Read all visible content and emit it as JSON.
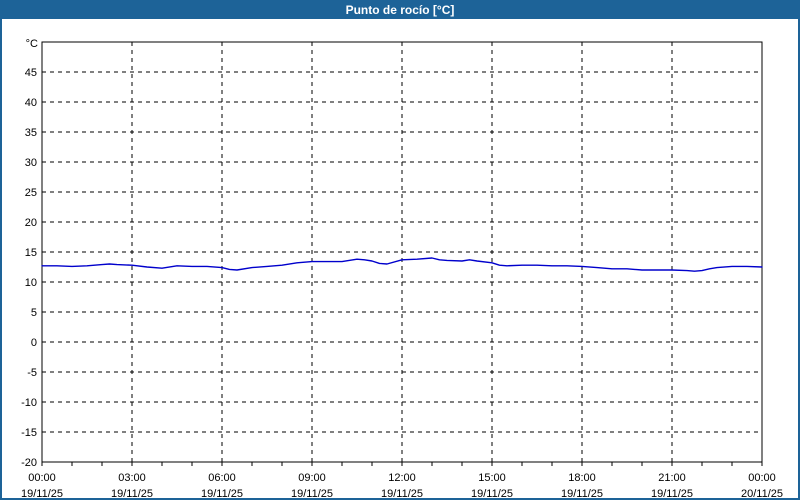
{
  "window": {
    "title": "Punto de rocío [°C]"
  },
  "colors": {
    "titlebar_bg": "#1d6398",
    "title_text": "#ffffff",
    "window_border": "#1d6398",
    "plot_border": "#000000",
    "grid": "#000000",
    "tick_text": "#000000",
    "line": "#0000cc",
    "plot_bg": "#ffffff"
  },
  "chart_data": {
    "type": "line",
    "title": "Punto de rocío [°C]",
    "ylabel": "°C",
    "xlabel": "",
    "ylim": [
      -20,
      50
    ],
    "xlim_hours": [
      0,
      24
    ],
    "grid": "dashed",
    "legend": "none",
    "yticks": [
      45,
      40,
      35,
      30,
      25,
      20,
      15,
      10,
      5,
      0,
      -5,
      -10,
      -15,
      -20
    ],
    "y_unit_label": "°C",
    "xticks": [
      {
        "hour": 0,
        "time": "00:00",
        "date": "19/11/25"
      },
      {
        "hour": 3,
        "time": "03:00",
        "date": "19/11/25"
      },
      {
        "hour": 6,
        "time": "06:00",
        "date": "19/11/25"
      },
      {
        "hour": 9,
        "time": "09:00",
        "date": "19/11/25"
      },
      {
        "hour": 12,
        "time": "12:00",
        "date": "19/11/25"
      },
      {
        "hour": 15,
        "time": "15:00",
        "date": "19/11/25"
      },
      {
        "hour": 18,
        "time": "18:00",
        "date": "19/11/25"
      },
      {
        "hour": 21,
        "time": "21:00",
        "date": "19/11/25"
      },
      {
        "hour": 24,
        "time": "00:00",
        "date": "20/11/25"
      }
    ],
    "minor_xtick_every_hours": 1,
    "series": [
      {
        "name": "Punto de rocío",
        "color": "#0000cc",
        "x_hours": [
          0,
          0.5,
          1,
          1.5,
          2,
          2.25,
          2.5,
          3,
          3.5,
          4,
          4.5,
          5,
          5.5,
          6,
          6.25,
          6.5,
          7,
          7.5,
          8,
          8.5,
          9,
          9.5,
          10,
          10.5,
          10.75,
          11,
          11.25,
          11.5,
          12,
          12.5,
          13,
          13.25,
          13.5,
          14,
          14.25,
          14.5,
          15,
          15.25,
          15.5,
          16,
          16.5,
          17,
          17.5,
          18,
          18.5,
          19,
          19.5,
          20,
          20.5,
          21,
          21.5,
          21.75,
          22,
          22.25,
          22.5,
          23,
          23.5,
          24
        ],
        "values": [
          12.7,
          12.7,
          12.6,
          12.7,
          12.9,
          13.0,
          12.9,
          12.8,
          12.5,
          12.3,
          12.7,
          12.6,
          12.6,
          12.4,
          12.1,
          12.0,
          12.4,
          12.6,
          12.8,
          13.2,
          13.4,
          13.4,
          13.4,
          13.8,
          13.7,
          13.5,
          13.1,
          13.0,
          13.7,
          13.8,
          14.0,
          13.7,
          13.6,
          13.5,
          13.7,
          13.5,
          13.2,
          12.8,
          12.7,
          12.8,
          12.8,
          12.7,
          12.7,
          12.6,
          12.4,
          12.2,
          12.2,
          12.0,
          12.0,
          12.0,
          11.9,
          11.8,
          11.9,
          12.2,
          12.4,
          12.6,
          12.6,
          12.5
        ]
      }
    ]
  }
}
